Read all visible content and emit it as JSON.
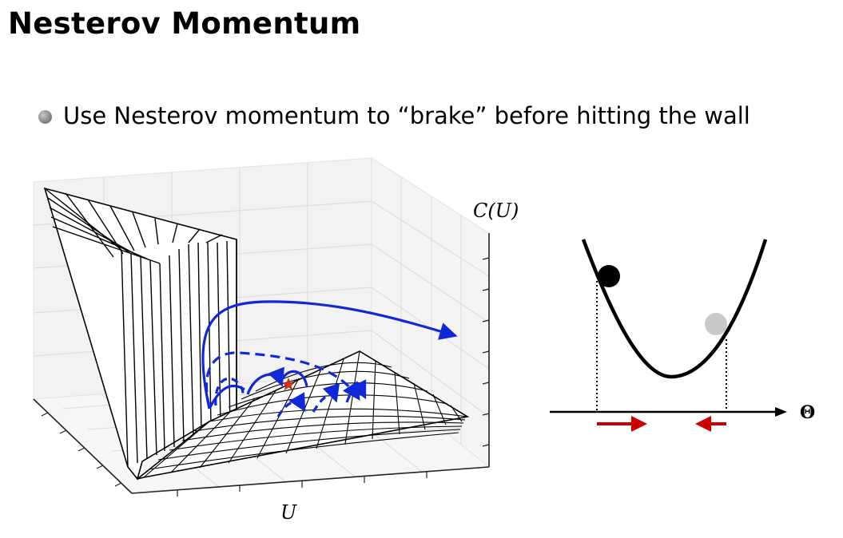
{
  "slide": {
    "title": "Nesterov Momentum",
    "bullet": "Use Nesterov momentum to “brake” before hitting the wall"
  },
  "surface_plot": {
    "z_label": "C(U)",
    "x_label": "U",
    "colors": {
      "mesh": "#000000",
      "trajectory": "#1028d8",
      "minimum_star": "#e03010",
      "grid": "#d8d8d8"
    }
  },
  "parabola_plot": {
    "axis_label": "Θ",
    "colors": {
      "curve": "#000000",
      "dark_ball": "#000000",
      "light_ball": "#c8c8c8",
      "arrows": "#cc0000"
    }
  }
}
